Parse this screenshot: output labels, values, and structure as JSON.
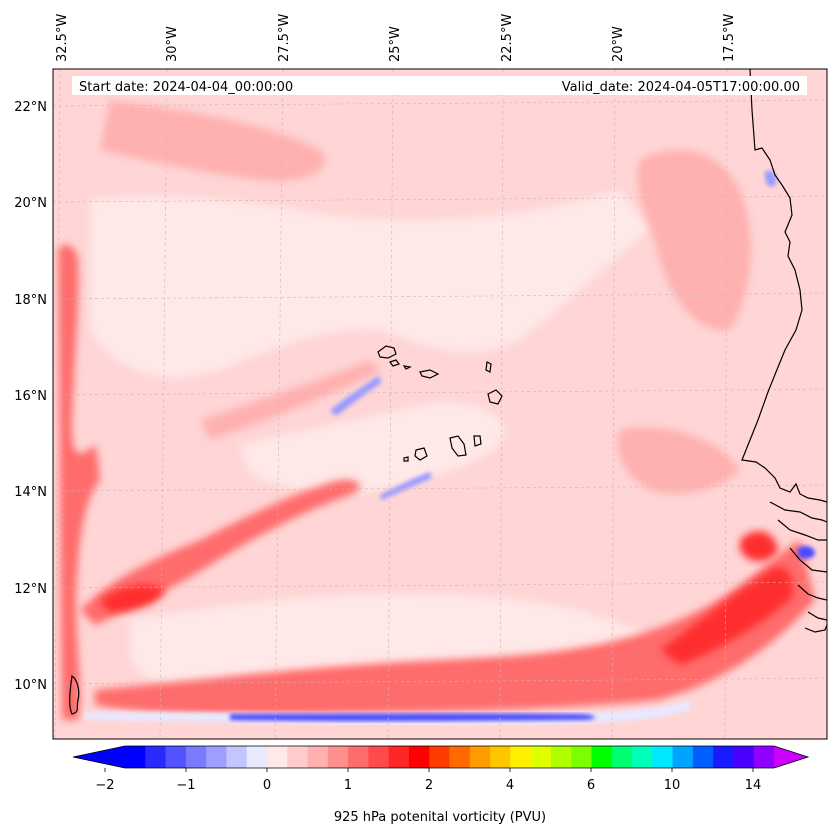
{
  "header": {
    "start_date": "Start date: 2024-04-04_00:00:00",
    "valid_date": "Valid_date: 2024-04-05T17:00:00.00"
  },
  "lon_ticks": [
    "32.5°W",
    "30°W",
    "27.5°W",
    "25°W",
    "22.5°W",
    "20°W",
    "17.5°W"
  ],
  "lat_ticks": [
    "22°N",
    "20°N",
    "18°N",
    "16°N",
    "14°N",
    "12°N",
    "10°N"
  ],
  "colorbar": {
    "label": "925 hPa potenital vorticity (PVU)",
    "ticks": [
      "−2",
      "−1",
      "0",
      "1",
      "2",
      "4",
      "6",
      "10",
      "14"
    ],
    "colors": [
      "#0000ff",
      "#2a2aff",
      "#5252ff",
      "#7a7aff",
      "#9e9eff",
      "#c4c4ff",
      "#eaeaff",
      "#ffe8e8",
      "#ffcccc",
      "#ffb0b0",
      "#ff8e8e",
      "#ff6c6c",
      "#ff4a4a",
      "#ff2626",
      "#ff0000",
      "#ff3c00",
      "#ff6a00",
      "#ff9a00",
      "#ffc600",
      "#fff000",
      "#e0ff00",
      "#b0ff00",
      "#7cff00",
      "#00ff00",
      "#00ff70",
      "#00ffb8",
      "#00e8ff",
      "#00a4ff",
      "#0060ff",
      "#1a1aff",
      "#4a00ff",
      "#9000ff"
    ],
    "under_color": "#0000ff",
    "over_color": "#cc00ff"
  },
  "field_colors": {
    "background": "#ffd5d5",
    "light": "#ffe8e8",
    "medium": "#ffb0b0",
    "strong": "#ff6c6c",
    "max": "#ff2e2e",
    "negative_light": "#e8e8ff",
    "negative": "#9a9aff",
    "negative_strong": "#4a4aff"
  }
}
